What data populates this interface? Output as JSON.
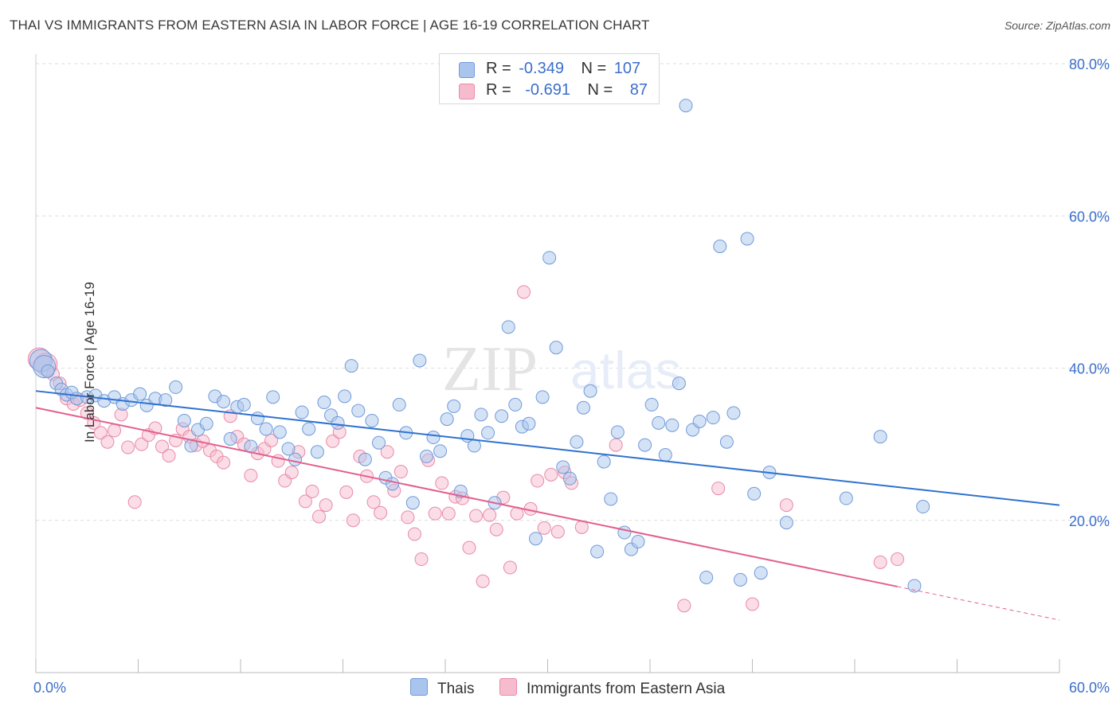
{
  "header": {
    "title": "THAI VS IMMIGRANTS FROM EASTERN ASIA IN LABOR FORCE | AGE 16-19 CORRELATION CHART",
    "source": "Source: ZipAtlas.com"
  },
  "watermark": {
    "zip": "ZIP",
    "atlas": "atlas"
  },
  "legend": {
    "rows": [
      {
        "r_label": "R =",
        "r_value": "-0.349",
        "n_label": "N =",
        "n_value": "107"
      },
      {
        "r_label": "R =",
        "r_value": "-0.691",
        "n_label": "N =",
        "n_value": "87"
      }
    ]
  },
  "colors": {
    "blue_fill": "#a9c5ee",
    "blue_stroke": "#6f9ad9",
    "blue_line": "#2f72cf",
    "pink_fill": "#f6bccd",
    "pink_stroke": "#e98aa8",
    "pink_line": "#e2608d",
    "tick_text": "#3b6fcc",
    "grid": "#dedede"
  },
  "chart_data": {
    "type": "scatter",
    "title": "THAI VS IMMIGRANTS FROM EASTERN ASIA IN LABOR FORCE | AGE 16-19 CORRELATION CHART",
    "xlabel": "",
    "ylabel": "In Labor Force | Age 16-19",
    "xlim": [
      0,
      60
    ],
    "ylim": [
      0,
      80
    ],
    "x_tick_labels": [
      "0.0%",
      "60.0%"
    ],
    "y_ticks": [
      20,
      40,
      60,
      80
    ],
    "y_tick_labels": [
      "20.0%",
      "40.0%",
      "60.0%",
      "80.0%"
    ],
    "grid": true,
    "series": [
      {
        "name": "Thais",
        "trend": {
          "x": [
            0,
            60
          ],
          "y": [
            37.0,
            22.0
          ]
        },
        "points": [
          [
            0.3,
            41.0
          ],
          [
            0.5,
            40.2
          ],
          [
            0.7,
            39.6
          ],
          [
            1.2,
            38.0
          ],
          [
            1.5,
            37.2
          ],
          [
            1.8,
            36.5
          ],
          [
            2.1,
            36.8
          ],
          [
            2.4,
            36.0
          ],
          [
            3.0,
            36.2
          ],
          [
            3.5,
            36.4
          ],
          [
            4.0,
            35.7
          ],
          [
            4.6,
            36.2
          ],
          [
            5.1,
            35.3
          ],
          [
            5.6,
            35.8
          ],
          [
            6.1,
            36.6
          ],
          [
            6.5,
            35.1
          ],
          [
            7.0,
            36.0
          ],
          [
            7.6,
            35.8
          ],
          [
            8.2,
            37.5
          ],
          [
            8.7,
            33.1
          ],
          [
            9.1,
            29.8
          ],
          [
            9.5,
            31.9
          ],
          [
            10.0,
            32.7
          ],
          [
            10.5,
            36.3
          ],
          [
            11.0,
            35.6
          ],
          [
            11.4,
            30.7
          ],
          [
            11.8,
            34.9
          ],
          [
            12.2,
            35.2
          ],
          [
            12.6,
            29.7
          ],
          [
            13.0,
            33.4
          ],
          [
            13.5,
            32.0
          ],
          [
            13.9,
            36.2
          ],
          [
            14.3,
            31.6
          ],
          [
            14.8,
            29.4
          ],
          [
            15.2,
            28.0
          ],
          [
            15.6,
            34.2
          ],
          [
            16.0,
            32.0
          ],
          [
            16.5,
            29.0
          ],
          [
            16.9,
            35.5
          ],
          [
            17.3,
            33.8
          ],
          [
            17.7,
            32.8
          ],
          [
            18.1,
            36.3
          ],
          [
            18.5,
            40.3
          ],
          [
            18.9,
            34.4
          ],
          [
            19.3,
            28.0
          ],
          [
            19.7,
            33.1
          ],
          [
            20.1,
            30.2
          ],
          [
            20.5,
            25.6
          ],
          [
            20.9,
            24.8
          ],
          [
            21.3,
            35.2
          ],
          [
            21.7,
            31.5
          ],
          [
            22.1,
            22.3
          ],
          [
            22.5,
            41.0
          ],
          [
            22.9,
            28.4
          ],
          [
            23.3,
            30.9
          ],
          [
            23.7,
            29.1
          ],
          [
            24.1,
            33.3
          ],
          [
            24.5,
            35.0
          ],
          [
            24.9,
            23.8
          ],
          [
            25.3,
            31.1
          ],
          [
            25.7,
            29.8
          ],
          [
            26.1,
            33.9
          ],
          [
            26.5,
            31.5
          ],
          [
            26.9,
            22.3
          ],
          [
            27.3,
            33.7
          ],
          [
            27.7,
            45.4
          ],
          [
            28.1,
            35.2
          ],
          [
            28.5,
            32.3
          ],
          [
            28.9,
            32.7
          ],
          [
            29.3,
            17.6
          ],
          [
            29.7,
            36.2
          ],
          [
            30.1,
            54.5
          ],
          [
            30.5,
            42.7
          ],
          [
            30.9,
            27.0
          ],
          [
            31.3,
            25.5
          ],
          [
            31.7,
            30.3
          ],
          [
            32.1,
            34.8
          ],
          [
            32.5,
            37.0
          ],
          [
            32.9,
            15.9
          ],
          [
            33.3,
            27.7
          ],
          [
            33.7,
            22.8
          ],
          [
            34.1,
            31.6
          ],
          [
            34.5,
            18.4
          ],
          [
            34.9,
            16.2
          ],
          [
            35.3,
            17.2
          ],
          [
            35.7,
            29.9
          ],
          [
            36.1,
            35.2
          ],
          [
            36.5,
            32.8
          ],
          [
            36.9,
            28.6
          ],
          [
            37.3,
            32.5
          ],
          [
            37.7,
            38.0
          ],
          [
            38.1,
            74.5
          ],
          [
            38.5,
            31.9
          ],
          [
            38.9,
            33.0
          ],
          [
            39.3,
            12.5
          ],
          [
            39.7,
            33.5
          ],
          [
            40.1,
            56.0
          ],
          [
            40.5,
            30.3
          ],
          [
            40.9,
            34.1
          ],
          [
            41.3,
            12.2
          ],
          [
            41.7,
            57.0
          ],
          [
            42.1,
            23.5
          ],
          [
            42.5,
            13.1
          ],
          [
            43.0,
            26.3
          ],
          [
            44.0,
            19.7
          ],
          [
            47.5,
            22.9
          ],
          [
            49.5,
            31.0
          ],
          [
            51.5,
            11.4
          ],
          [
            52.0,
            21.8
          ]
        ]
      },
      {
        "name": "Immigrants from Eastern Asia",
        "trend": {
          "x": [
            0,
            50.5
          ],
          "y": [
            34.8,
            11.3
          ]
        },
        "trend_dashed": {
          "x": [
            50.5,
            60
          ],
          "y": [
            11.3,
            6.9
          ]
        },
        "points": [
          [
            0.2,
            41.2
          ],
          [
            0.6,
            40.5
          ],
          [
            1.0,
            39.2
          ],
          [
            1.4,
            38.0
          ],
          [
            1.8,
            36.0
          ],
          [
            2.2,
            35.3
          ],
          [
            2.6,
            35.8
          ],
          [
            3.0,
            34.1
          ],
          [
            3.4,
            32.8
          ],
          [
            3.8,
            31.5
          ],
          [
            4.2,
            30.3
          ],
          [
            4.6,
            31.8
          ],
          [
            5.0,
            33.9
          ],
          [
            5.4,
            29.6
          ],
          [
            5.8,
            22.4
          ],
          [
            6.2,
            30.0
          ],
          [
            6.6,
            31.2
          ],
          [
            7.0,
            32.1
          ],
          [
            7.4,
            29.7
          ],
          [
            7.8,
            28.5
          ],
          [
            8.2,
            30.5
          ],
          [
            8.6,
            32.0
          ],
          [
            9.0,
            31.0
          ],
          [
            9.4,
            29.9
          ],
          [
            9.8,
            30.4
          ],
          [
            10.2,
            29.2
          ],
          [
            10.6,
            28.4
          ],
          [
            11.0,
            27.6
          ],
          [
            11.4,
            33.7
          ],
          [
            11.8,
            31.0
          ],
          [
            12.2,
            30.0
          ],
          [
            12.6,
            25.9
          ],
          [
            13.0,
            28.8
          ],
          [
            13.4,
            29.4
          ],
          [
            13.8,
            30.5
          ],
          [
            14.2,
            27.8
          ],
          [
            14.6,
            25.2
          ],
          [
            15.0,
            26.3
          ],
          [
            15.4,
            29.0
          ],
          [
            15.8,
            22.5
          ],
          [
            16.2,
            23.8
          ],
          [
            16.6,
            20.5
          ],
          [
            17.0,
            22.0
          ],
          [
            17.4,
            30.4
          ],
          [
            17.8,
            31.6
          ],
          [
            18.2,
            23.7
          ],
          [
            18.6,
            20.0
          ],
          [
            19.0,
            28.4
          ],
          [
            19.4,
            25.8
          ],
          [
            19.8,
            22.4
          ],
          [
            20.2,
            21.0
          ],
          [
            20.6,
            29.0
          ],
          [
            21.0,
            23.9
          ],
          [
            21.4,
            26.4
          ],
          [
            21.8,
            20.4
          ],
          [
            22.2,
            18.2
          ],
          [
            22.6,
            14.9
          ],
          [
            23.0,
            27.9
          ],
          [
            23.4,
            20.9
          ],
          [
            23.8,
            24.9
          ],
          [
            24.2,
            20.9
          ],
          [
            24.6,
            23.1
          ],
          [
            25.0,
            22.9
          ],
          [
            25.4,
            16.4
          ],
          [
            25.8,
            20.6
          ],
          [
            26.2,
            12.0
          ],
          [
            26.6,
            20.7
          ],
          [
            27.0,
            18.8
          ],
          [
            27.4,
            23.0
          ],
          [
            27.8,
            13.8
          ],
          [
            28.2,
            20.9
          ],
          [
            28.6,
            50.0
          ],
          [
            29.0,
            21.5
          ],
          [
            29.4,
            25.2
          ],
          [
            29.8,
            19.0
          ],
          [
            30.2,
            26.0
          ],
          [
            30.6,
            18.5
          ],
          [
            31.0,
            26.3
          ],
          [
            31.4,
            24.9
          ],
          [
            32.0,
            19.1
          ],
          [
            34.0,
            29.9
          ],
          [
            38.0,
            8.8
          ],
          [
            40.0,
            24.2
          ],
          [
            42.0,
            9.0
          ],
          [
            44.0,
            22.0
          ],
          [
            49.5,
            14.5
          ],
          [
            50.5,
            14.9
          ]
        ]
      }
    ]
  },
  "bottom_legend": {
    "items": [
      {
        "label": "Thais"
      },
      {
        "label": "Immigrants from Eastern Asia"
      }
    ]
  }
}
